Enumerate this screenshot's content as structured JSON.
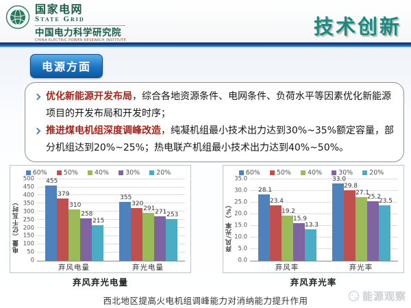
{
  "header": {
    "brand": {
      "name_cn": "国家电网",
      "name_en": "State Grid",
      "institute_cn": "中国电力科学研究院",
      "institute_en": "CHINA ELECTRIC POWER RESEARCH INSTITUTE"
    },
    "page_title": "技术创新"
  },
  "badge_label": "电源方面",
  "bullets": [
    {
      "lead": "优化新能源开发布局",
      "text": "，综合各地资源条件、电网条件、负荷水平等因素优化新能源项目的开发布局和开发时序；"
    },
    {
      "lead": "推进煤电机组深度调峰改造",
      "text": "，纯凝机组最小技术出力达到30%~35%额定容量，部分机组达到20%~25%；热电联产机组最小技术出力达到40%~50%。"
    }
  ],
  "caption": "西北地区提高火电机组调峰能力对消纳能力提升作用",
  "watermark": "能源观察",
  "colors": {
    "badge_blue": "#1d74c0",
    "title_teal": "#1a8a80",
    "lead_red": "#a2251c",
    "series": [
      "#4f81bd",
      "#c0504d",
      "#9bbb59",
      "#8064a2",
      "#4bacc6"
    ]
  },
  "chart_data": [
    {
      "type": "bar",
      "title": "弃风弃光电量",
      "ylabel": "电量（亿千瓦时）",
      "categories": [
        "弃风电量",
        "弃光电量"
      ],
      "series": [
        {
          "name": "60%",
          "color": "#4f81bd",
          "values": [
            455,
            355
          ],
          "labels": [
            "455",
            "355"
          ]
        },
        {
          "name": "50%",
          "color": "#c0504d",
          "values": [
            379,
            320
          ],
          "labels": [
            "379",
            "320"
          ]
        },
        {
          "name": "40%",
          "color": "#9bbb59",
          "values": [
            310,
            291
          ],
          "labels": [
            "310",
            "291"
          ]
        },
        {
          "name": "30%",
          "color": "#8064a2",
          "values": [
            258,
            271
          ],
          "labels": [
            "258",
            "271"
          ]
        },
        {
          "name": "20%",
          "color": "#4bacc6",
          "values": [
            215,
            253
          ],
          "labels": [
            "215",
            "253"
          ]
        }
      ],
      "ylim": [
        0,
        500
      ],
      "yticks": [
        "0",
        "50",
        "100",
        "150",
        "200",
        "250",
        "300",
        "350",
        "400",
        "450",
        "500"
      ],
      "grid": true,
      "legend_position": "top"
    },
    {
      "type": "bar",
      "title": "弃风弃光率",
      "ylabel": "弃风/光率（%）",
      "categories": [
        "弃风率",
        "弃光率"
      ],
      "series": [
        {
          "name": "60%",
          "color": "#4f81bd",
          "values": [
            28.1,
            33.0
          ],
          "labels": [
            "28.1",
            "33.0"
          ]
        },
        {
          "name": "50%",
          "color": "#c0504d",
          "values": [
            23.4,
            29.8
          ],
          "labels": [
            "23.4",
            "29.8"
          ]
        },
        {
          "name": "40%",
          "color": "#9bbb59",
          "values": [
            19.2,
            27.1
          ],
          "labels": [
            "19.2",
            "27.1"
          ]
        },
        {
          "name": "30%",
          "color": "#8064a2",
          "values": [
            15.9,
            25.2
          ],
          "labels": [
            "15.9",
            "25.2"
          ]
        },
        {
          "name": "20%",
          "color": "#4bacc6",
          "values": [
            13.3,
            23.5
          ],
          "labels": [
            "13.3",
            "23.5"
          ]
        }
      ],
      "ylim": [
        0,
        35
      ],
      "yticks": [
        "0.0",
        "5.0",
        "10.0",
        "15.0",
        "20.0",
        "25.0",
        "30.0",
        "35.0"
      ],
      "grid": true,
      "legend_position": "top"
    }
  ]
}
